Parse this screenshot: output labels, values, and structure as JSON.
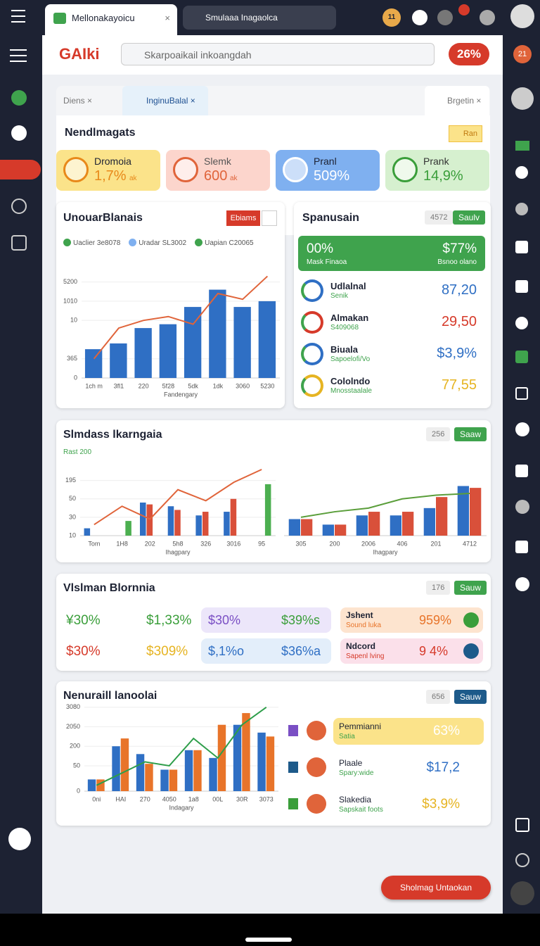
{
  "browser": {
    "tab": "Mellonakayoicu",
    "search": "Smulaaa Inagaolca",
    "badge": "11"
  },
  "header": {
    "logo": "GAIki",
    "search": "Skarpoaikail inkoangdah",
    "badge": "26%",
    "side_badge": "21"
  },
  "tabs": [
    "Diens",
    "InginuBalal",
    "Brgetin"
  ],
  "section": {
    "title": "Nendlmagats",
    "badge": "Ran"
  },
  "kpis": [
    {
      "label": "Dromoia",
      "value": "1,7%",
      "unit": "ak"
    },
    {
      "label": "Slemk",
      "value": "600",
      "unit": "ak"
    },
    {
      "label": "Pranl",
      "value": "509%"
    },
    {
      "label": "Prank",
      "value": "14,9%"
    }
  ],
  "spanusain": {
    "title": "Spanusain",
    "count": "4572",
    "button": "Saulv",
    "banner": {
      "left_value": "00%",
      "left_label": "Mask Finaoa",
      "right_value": "$77%",
      "right_label": "Bsnoo olano"
    },
    "items": [
      {
        "name": "Udlalnal",
        "sub": "Senik",
        "value": "87,20"
      },
      {
        "name": "Almakan",
        "sub": "S409068",
        "value": "29,50"
      },
      {
        "name": "Biuala",
        "sub": "Sapoelofi/Vo",
        "value": "$3,9%"
      },
      {
        "name": "Cololndo",
        "sub": "Mnosstaalale",
        "value": "77,55"
      }
    ]
  },
  "values_card": {
    "title": "Vlslman Blornnia",
    "count": "176",
    "button": "Sauw",
    "grid": [
      "¥30%",
      "$1,33%",
      "$30%",
      "$309%"
    ],
    "boxes": [
      [
        "$30%",
        "$39%s"
      ],
      [
        "$,1%o",
        "$36%a"
      ]
    ],
    "items": [
      {
        "name": "Jshent",
        "sub": "Sound luka",
        "value": "959%"
      },
      {
        "name": "Ndcord",
        "sub": "Sapenl lving",
        "value": "9 4%"
      }
    ]
  },
  "neural": {
    "count": "656",
    "button": "Sauw",
    "items": [
      {
        "name": "Pemmianni",
        "sub": "Satia",
        "value": "63%"
      },
      {
        "name": "Plaale",
        "sub": "Spary:wide",
        "value": "$17,2"
      },
      {
        "name": "Slakedia",
        "sub": "Sapskait foots",
        "value": "$3,9%"
      }
    ]
  },
  "fab": "Sholmag Untaokan",
  "chart_data": [
    {
      "type": "bar",
      "title": "UnouarBlanais",
      "button": "Ebiams",
      "legend": [
        "Uaclier 3e8078",
        "Uradar SL3002",
        "Uapian C20065"
      ],
      "categories": [
        "1ch m",
        "3fl1",
        "220",
        "5f28",
        "5dk",
        "1dk",
        "3060",
        "5230"
      ],
      "series": [
        {
          "color": "#2f6fc4",
          "values": [
            1.5,
            1.8,
            2.6,
            2.8,
            3.7,
            4.6,
            3.7,
            4.0
          ]
        },
        {
          "type": "line",
          "color": "#e0643a",
          "values": [
            1.0,
            2.6,
            3.0,
            3.2,
            2.8,
            4.4,
            4.1,
            5.3
          ]
        }
      ],
      "ylim": [
        0,
        5.5
      ],
      "yticks": [
        0,
        {
          "value": 1,
          "label": "365"
        },
        {
          "value": 3,
          "label": "10"
        },
        {
          "value": 4,
          "label": "1010"
        },
        {
          "value": 5,
          "label": "5200"
        }
      ],
      "x_label": "Fandengary"
    },
    {
      "type": "bar",
      "title": "Slmdass lkarngaia",
      "subtitle": "Rast 200",
      "count": "256",
      "button": "Saaw",
      "categories": [
        "Tom",
        "1H8",
        "202",
        "5h8",
        "326",
        "3016",
        "95"
      ],
      "series": [
        {
          "color": "#2f6fc4",
          "values": [
            0.4,
            0,
            1.8,
            1.6,
            1.1,
            1.3,
            0
          ]
        },
        {
          "color": "#d9503a",
          "values": [
            0,
            0,
            1.7,
            1.4,
            1.3,
            2.0,
            0
          ]
        },
        {
          "color": "#4caf50",
          "values": [
            0,
            0.8,
            0,
            0,
            0,
            0,
            2.8
          ]
        },
        {
          "type": "line",
          "color": "#e0643a",
          "values": [
            0.6,
            1.6,
            0.9,
            2.5,
            1.9,
            2.9,
            3.6
          ]
        }
      ],
      "ylim": [
        0,
        3.6
      ],
      "yticks": [
        {
          "value": 0,
          "label": "10"
        },
        {
          "value": 1,
          "label": "30"
        },
        {
          "value": 2,
          "label": "50"
        },
        {
          "value": 3,
          "label": "195"
        }
      ],
      "x_label": "Ihagpary"
    },
    {
      "type": "bar",
      "categories": [
        "305",
        "200",
        "2006",
        "406",
        "201",
        "4712"
      ],
      "series": [
        {
          "color": "#2f6fc4",
          "values": [
            0.9,
            0.6,
            1.1,
            1.1,
            1.5,
            2.7
          ]
        },
        {
          "color": "#d9503a",
          "values": [
            0.9,
            0.6,
            1.3,
            1.3,
            2.1,
            2.6
          ]
        },
        {
          "type": "line",
          "color": "#5a9e3a",
          "values": [
            1.0,
            1.3,
            1.5,
            2.0,
            2.2,
            2.3
          ]
        }
      ],
      "ylim": [
        0,
        3.6
      ],
      "x_label": "Ihagpary"
    },
    {
      "type": "bar",
      "title": "Nenuraill lanoolai",
      "categories": [
        "0ni",
        "HAI",
        "270",
        "4050",
        "1a8",
        "00L",
        "30R",
        "3073"
      ],
      "series": [
        {
          "color": "#2f6fc4",
          "values": [
            0.6,
            2.3,
            1.9,
            1.1,
            2.1,
            1.7,
            3.4,
            3.0
          ]
        },
        {
          "color": "#e8742a",
          "values": [
            0.6,
            2.7,
            1.4,
            1.1,
            2.1,
            3.4,
            4.0,
            2.8
          ]
        },
        {
          "type": "line",
          "color": "#2e9e4a",
          "values": [
            0.3,
            0.9,
            1.5,
            1.3,
            2.7,
            1.7,
            3.4,
            4.3
          ]
        }
      ],
      "ylim": [
        0,
        4.4
      ],
      "yticks": [
        0,
        {
          "value": 1.3,
          "label": "50"
        },
        {
          "value": 2.3,
          "label": "200"
        },
        {
          "value": 3.3,
          "label": "2050"
        },
        {
          "value": 4.3,
          "label": "3080"
        }
      ],
      "x_label": "Indagary"
    }
  ]
}
